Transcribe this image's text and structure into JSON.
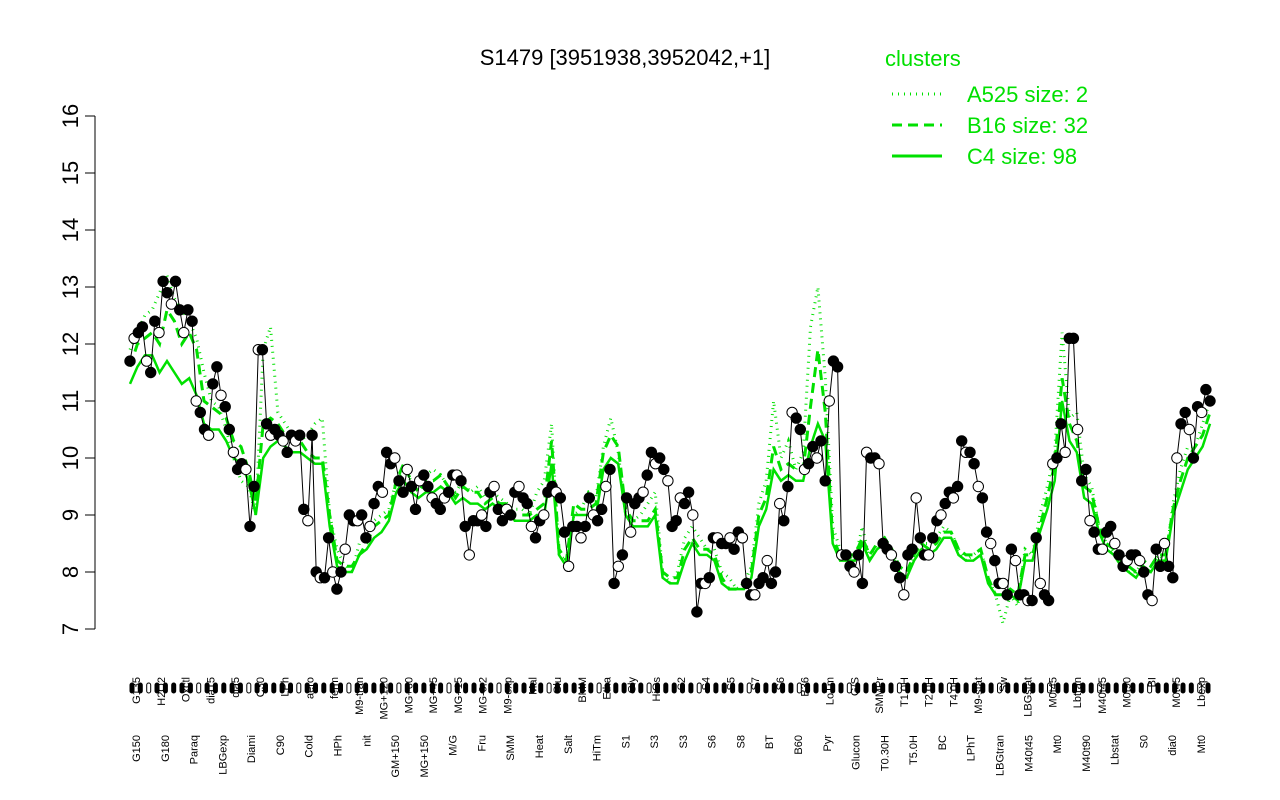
{
  "chart_data": {
    "type": "line",
    "title": "S1479 [3951938,3952042,+1]",
    "xlabel": "",
    "ylabel": "",
    "ylim": [
      7,
      16
    ],
    "yticks": [
      7,
      8,
      9,
      10,
      11,
      12,
      13,
      14,
      15,
      16
    ],
    "xlabels_top": [
      "G135",
      "H2O2",
      "Oxctl",
      "dia15",
      "dia5",
      "C30",
      "LPh",
      "aero",
      "ferm",
      "M9-tran",
      "MG+120",
      "MG+60",
      "MG+45",
      "MG+15",
      "MG-0.2",
      "M9-exp",
      "Mal",
      "Glu",
      "BMM",
      "Etha",
      "Gly",
      "HiOs",
      "S2",
      "S4",
      "S5",
      "S7",
      "S6",
      "B36",
      "LoTm",
      "G/S",
      "SMMPr",
      "T1.0H",
      "T2.0H",
      "T4.0H",
      "M9-stat",
      "Sw",
      "LBGstat",
      "M0t45",
      "Lbtran",
      "M40t45",
      "M0t90",
      "BI",
      "M0t45",
      "Lbexp"
    ],
    "xlabels_bottom": [
      "G150",
      "G180",
      "Paraq",
      "LBGexp",
      "Diami",
      "C90",
      "Cold",
      "HPh",
      "nit",
      "GM+150",
      "MG+150",
      "M/G",
      "Fru",
      "SMM",
      "Heat",
      "Salt",
      "HiTm",
      "S1",
      "S3",
      "S3",
      "S6",
      "S8",
      "BT",
      "B60",
      "Pyr",
      "Glucon",
      "T0.30H",
      "T5.0H",
      "BC",
      "LPhT",
      "LBGtran",
      "M40t45",
      "Mt0",
      "M40t90",
      "Lbstat",
      "S0",
      "dia0",
      "Mt0"
    ],
    "legend": {
      "title": "clusters",
      "position": "top-right",
      "entries": [
        {
          "label": "A525 size: 2",
          "style": "dotted"
        },
        {
          "label": "B16 size: 32",
          "style": "dashed"
        },
        {
          "label": "C4 size: 98",
          "style": "solid"
        }
      ]
    },
    "colors": {
      "cluster_lines": "#00e000",
      "main_line": "#000000"
    },
    "series": [
      {
        "name": "A525 size: 2",
        "style": "dotted",
        "values": [
          11.9,
          12.2,
          12.5,
          12.6,
          12.9,
          13.2,
          12.8,
          12.6,
          12.4,
          12.1,
          11.5,
          11.0,
          10.9,
          10.5,
          10.0,
          9.6,
          9.5,
          9.0,
          11.9,
          12.3,
          10.8,
          10.6,
          10.4,
          10.3,
          10.4,
          10.6,
          10.7,
          9.0,
          8.4,
          8.1,
          8.0,
          8.5,
          8.6,
          8.9,
          9.0,
          9.1,
          9.6,
          9.8,
          9.6,
          9.6,
          9.7,
          9.8,
          9.7,
          9.5,
          9.4,
          9.6,
          9.4,
          9.5,
          9.3,
          9.4,
          9.3,
          9.2,
          9.1,
          9.1,
          9.0,
          9.4,
          9.6,
          10.6,
          8.3,
          8.2,
          9.0,
          9.1,
          9.4,
          9.3,
          10.2,
          10.7,
          10.1,
          9.0,
          8.9,
          9.0,
          9.2,
          9.4,
          8.0,
          7.8,
          8.0,
          8.6,
          8.8,
          8.6,
          8.4,
          8.4,
          8.0,
          7.9,
          7.7,
          7.8,
          8.1,
          9.2,
          9.6,
          11.0,
          10.0,
          10.3,
          9.8,
          10.1,
          12.3,
          13.0,
          11.4,
          8.8,
          8.4,
          8.3,
          8.2,
          8.8,
          8.2,
          8.5,
          8.6,
          8.4,
          8.0,
          7.9,
          8.3,
          8.5,
          8.5,
          8.6,
          8.8,
          8.7,
          8.4,
          8.2,
          8.3,
          8.4,
          7.9,
          7.6,
          7.1,
          7.6,
          7.4,
          8.4,
          8.3,
          9.0,
          9.5,
          10.1,
          12.2,
          10.7,
          10.8,
          9.7,
          9.5,
          8.8,
          8.5,
          8.3,
          8.3,
          8.0,
          8.0,
          8.2,
          8.1,
          8.3,
          8.2,
          9.2,
          9.8,
          10.2,
          10.2,
          10.6,
          11.0
        ]
      },
      {
        "name": "B16 size: 32",
        "style": "dashed",
        "values": [
          11.6,
          12.0,
          12.1,
          12.2,
          12.0,
          12.6,
          12.4,
          12.0,
          12.2,
          11.9,
          11.0,
          10.9,
          10.8,
          10.7,
          10.3,
          10.2,
          9.8,
          9.2,
          10.6,
          10.7,
          10.6,
          10.4,
          10.3,
          10.3,
          10.1,
          10.0,
          10.0,
          9.0,
          8.2,
          8.1,
          8.1,
          8.3,
          8.5,
          8.8,
          8.9,
          9.0,
          9.6,
          9.9,
          9.6,
          9.4,
          9.6,
          9.6,
          9.7,
          9.5,
          9.3,
          9.5,
          9.4,
          9.4,
          9.2,
          9.3,
          9.2,
          9.2,
          9.0,
          9.0,
          9.0,
          9.1,
          9.2,
          10.3,
          8.4,
          8.2,
          9.2,
          9.1,
          9.1,
          9.2,
          10.1,
          10.4,
          10.2,
          9.1,
          8.9,
          8.9,
          8.9,
          9.1,
          8.0,
          7.9,
          7.9,
          8.4,
          8.6,
          8.4,
          8.4,
          8.3,
          7.9,
          7.7,
          7.7,
          7.8,
          8.0,
          9.0,
          9.3,
          10.2,
          9.8,
          9.9,
          9.8,
          9.8,
          10.9,
          11.9,
          10.8,
          8.6,
          8.3,
          8.3,
          8.3,
          8.6,
          8.3,
          8.5,
          8.6,
          8.4,
          8.1,
          8.0,
          8.3,
          8.5,
          8.4,
          8.5,
          8.7,
          8.7,
          8.4,
          8.3,
          8.3,
          8.4,
          7.9,
          7.6,
          7.6,
          7.7,
          7.6,
          8.3,
          8.3,
          8.8,
          9.3,
          9.9,
          11.4,
          10.6,
          10.3,
          9.5,
          9.4,
          8.8,
          8.5,
          8.4,
          8.2,
          8.1,
          8.0,
          8.2,
          8.1,
          8.3,
          8.3,
          9.1,
          9.6,
          10.0,
          10.2,
          10.4,
          10.8
        ]
      },
      {
        "name": "C4 size: 98",
        "style": "solid",
        "values": [
          11.3,
          11.6,
          11.8,
          11.8,
          11.5,
          11.7,
          11.5,
          11.3,
          11.4,
          11.1,
          10.6,
          10.5,
          10.5,
          10.3,
          10.0,
          9.9,
          9.6,
          9.0,
          10.0,
          10.2,
          10.3,
          10.2,
          10.1,
          10.1,
          10.0,
          9.9,
          9.9,
          8.8,
          8.1,
          8.0,
          8.0,
          8.3,
          8.4,
          8.6,
          8.7,
          8.9,
          9.4,
          9.6,
          9.4,
          9.3,
          9.4,
          9.4,
          9.5,
          9.4,
          9.2,
          9.3,
          9.2,
          9.2,
          9.1,
          9.2,
          9.1,
          9.1,
          8.9,
          8.9,
          8.9,
          9.0,
          9.0,
          9.9,
          8.3,
          8.1,
          9.0,
          9.0,
          9.0,
          9.0,
          9.8,
          10.0,
          9.9,
          9.0,
          8.8,
          8.8,
          8.8,
          9.0,
          7.9,
          7.8,
          7.8,
          8.2,
          8.5,
          8.3,
          8.3,
          8.2,
          7.8,
          7.7,
          7.7,
          7.7,
          7.9,
          8.8,
          9.1,
          9.8,
          9.6,
          9.7,
          9.6,
          9.6,
          10.2,
          10.6,
          10.3,
          8.5,
          8.2,
          8.2,
          8.2,
          8.5,
          8.2,
          8.4,
          8.5,
          8.3,
          8.0,
          7.9,
          8.2,
          8.4,
          8.3,
          8.4,
          8.6,
          8.6,
          8.3,
          8.2,
          8.2,
          8.3,
          7.8,
          7.6,
          7.6,
          7.6,
          7.5,
          8.2,
          8.2,
          8.7,
          9.1,
          9.6,
          11.0,
          10.3,
          10.1,
          9.3,
          9.2,
          8.7,
          8.4,
          8.3,
          8.1,
          8.0,
          7.9,
          8.1,
          8.0,
          8.2,
          8.2,
          9.0,
          9.4,
          9.8,
          10.0,
          10.2,
          10.6
        ]
      },
      {
        "name": "",
        "style": "points",
        "values": [
          11.7,
          12.1,
          12.2,
          12.3,
          11.7,
          11.5,
          12.4,
          12.2,
          13.1,
          12.9,
          12.7,
          13.1,
          12.6,
          12.2,
          12.6,
          12.4,
          11.0,
          10.8,
          10.5,
          10.4,
          11.3,
          11.6,
          11.1,
          10.9,
          10.5,
          10.1,
          9.8,
          9.9,
          9.8,
          8.8,
          9.5,
          11.9,
          11.9,
          10.6,
          10.4,
          10.5,
          10.4,
          10.3,
          10.1,
          10.4,
          10.3,
          10.4,
          9.1,
          8.9,
          10.4,
          8.0,
          7.9,
          7.9,
          8.6,
          8.0,
          7.7,
          8.0,
          8.4,
          9.0,
          8.9,
          8.9,
          9.0,
          8.6,
          8.8,
          9.2,
          9.5,
          9.4,
          10.1,
          9.9,
          10.0,
          9.6,
          9.4,
          9.8,
          9.5,
          9.1,
          9.6,
          9.7,
          9.5,
          9.3,
          9.2,
          9.1,
          9.3,
          9.4,
          9.7,
          9.7,
          9.6,
          8.8,
          8.3,
          8.9,
          8.9,
          9.0,
          8.8,
          9.4,
          9.5,
          9.1,
          8.9,
          9.1,
          9.0,
          9.4,
          9.5,
          9.3,
          9.2,
          8.8,
          8.6,
          8.9,
          9.0,
          9.4,
          9.5,
          9.4,
          9.3,
          8.7,
          8.1,
          8.8,
          8.8,
          8.6,
          8.8,
          9.3,
          9.0,
          8.9,
          9.1,
          9.5,
          9.8,
          7.8,
          8.1,
          8.3,
          9.3,
          8.7,
          9.2,
          9.3,
          9.4,
          9.7,
          10.1,
          9.9,
          10.0,
          9.8,
          9.6,
          8.8,
          8.9,
          9.3,
          9.2,
          9.4,
          9.0,
          7.3,
          7.8,
          7.8,
          7.9,
          8.6,
          8.6,
          8.5,
          8.5,
          8.6,
          8.4,
          8.7,
          8.6,
          7.8,
          7.6,
          7.6,
          7.8,
          7.9,
          8.2,
          7.8,
          8.0,
          9.2,
          8.9,
          9.5,
          10.8,
          10.7,
          10.5,
          9.8,
          9.9,
          10.2,
          10.0,
          10.3,
          9.6,
          11.0,
          11.7,
          11.6,
          8.3,
          8.3,
          8.1,
          8.0,
          8.3,
          7.8,
          10.1,
          10.0,
          10.0,
          9.9,
          8.5,
          8.4,
          8.3,
          8.1,
          7.9,
          7.6,
          8.3,
          8.4,
          9.3,
          8.6,
          8.3,
          8.3,
          8.6,
          8.9,
          9.0,
          9.2,
          9.4,
          9.3,
          9.5,
          10.3,
          10.1,
          10.1,
          9.9,
          9.5,
          9.3,
          8.7,
          8.5,
          8.2,
          7.8,
          7.8,
          7.6,
          8.4,
          8.2,
          7.6,
          7.6,
          7.5,
          7.5,
          8.6,
          7.8,
          7.6,
          7.5,
          9.9,
          10.0,
          10.6,
          10.1,
          12.1,
          12.1,
          10.5,
          9.6,
          9.8,
          8.9,
          8.7,
          8.4,
          8.4,
          8.7,
          8.8,
          8.5,
          8.3,
          8.1,
          8.2,
          8.3,
          8.3,
          8.2,
          8.0,
          7.6,
          7.5,
          8.4,
          8.1,
          8.5,
          8.1,
          7.9,
          10.0,
          10.6,
          10.8,
          10.5,
          10.0,
          10.9,
          10.8,
          11.2,
          11.0
        ]
      }
    ]
  }
}
